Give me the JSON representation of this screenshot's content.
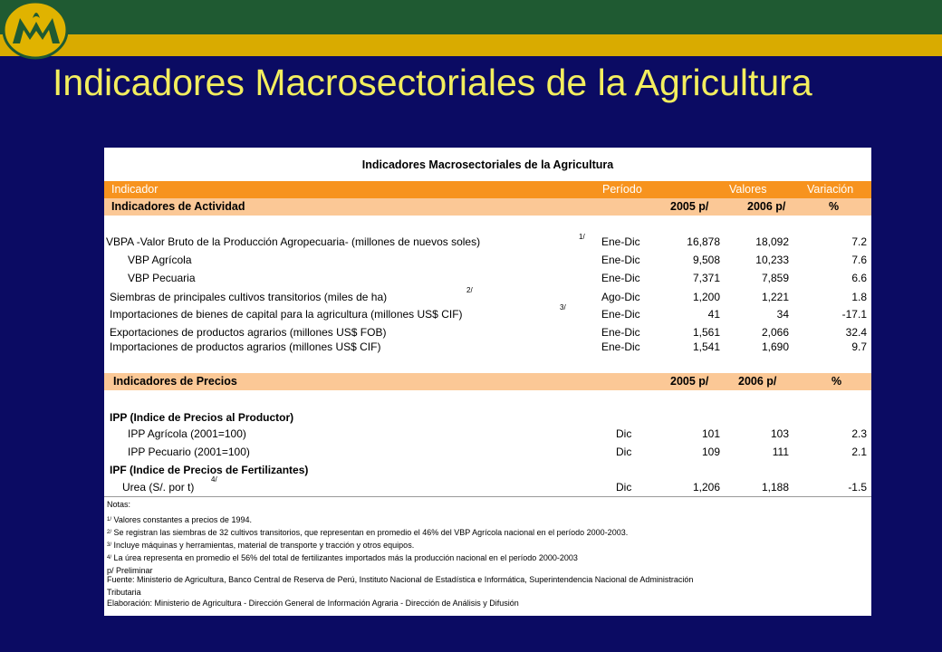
{
  "header": {
    "title": "Indicadores Macrosectoriales de la Agricultura"
  },
  "colors": {
    "background": "#0b0b63",
    "green_bar": "#1f5a32",
    "gold_bar": "#d9ab00",
    "title": "#f3ee5e",
    "table_header": "#f7931e",
    "section_row": "#fbc896"
  },
  "logo": {
    "icon": "ministry-logo-icon"
  },
  "table": {
    "title": "Indicadores Macrosectoriales de la Agricultura",
    "columns": {
      "indicator": "Indicador",
      "period": "Período",
      "values": "Valores",
      "variation": "Variación"
    },
    "activity": {
      "label": "Indicadores de Actividad",
      "y1": "2005 p/",
      "y2": "2006 p/",
      "pct": "%",
      "rows": [
        {
          "name": "VBPA -Valor Bruto de la Producción Agropecuaria- (millones de nuevos soles)",
          "sup": "1/",
          "period": "Ene-Dic",
          "v1": "16,878",
          "v2": "18,092",
          "var": "7.2"
        },
        {
          "name": "VBP Agrícola",
          "sup": "",
          "period": "Ene-Dic",
          "v1": "9,508",
          "v2": "10,233",
          "var": "7.6"
        },
        {
          "name": "VBP Pecuaria",
          "sup": "",
          "period": "Ene-Dic",
          "v1": "7,371",
          "v2": "7,859",
          "var": "6.6"
        },
        {
          "name": "Siembras de principales cultivos transitorios (miles de ha)",
          "sup": "2/",
          "period": "Ago-Dic",
          "v1": "1,200",
          "v2": "1,221",
          "var": "1.8"
        },
        {
          "name": "Importaciones de bienes de capital para la agricultura (millones US$ CIF)",
          "sup": "3/",
          "period": "Ene-Dic",
          "v1": "41",
          "v2": "34",
          "var": "-17.1"
        },
        {
          "name": "Exportaciones de productos agrarios (millones US$ FOB)",
          "sup": "",
          "period": "Ene-Dic",
          "v1": "1,561",
          "v2": "2,066",
          "var": "32.4"
        },
        {
          "name": "Importaciones de productos agrarios (millones US$ CIF)",
          "sup": "",
          "period": "Ene-Dic",
          "v1": "1,541",
          "v2": "1,690",
          "var": "9.7"
        }
      ]
    },
    "prices": {
      "label": "Indicadores de Precios",
      "y1": "2005 p/",
      "y2": "2006 p/",
      "pct": "%",
      "ipp_heading": "IPP (Indice de Precios al Productor)",
      "ipp_rows": [
        {
          "name": "IPP Agrícola (2001=100)",
          "period": "Dic",
          "v1": "101",
          "v2": "103",
          "var": "2.3"
        },
        {
          "name": "IPP Pecuario (2001=100)",
          "period": "Dic",
          "v1": "109",
          "v2": "111",
          "var": "2.1"
        }
      ],
      "ipf_heading": "IPF (Indice de Precios de Fertilizantes)",
      "ipf_rows": [
        {
          "name": "Urea  (S/. por t)",
          "sup": "4/",
          "period": "Dic",
          "v1": "1,206",
          "v2": "1,188",
          "var": "-1.5"
        }
      ]
    },
    "notes": {
      "heading": "Notas:",
      "items": [
        {
          "mark": "1/",
          "text": "Valores constantes a precios de 1994."
        },
        {
          "mark": "2/",
          "text": "Se registran las siembras de 32 cultivos transitorios, que representan en promedio el 46% del VBP Agrícola nacional en el período 2000-2003."
        },
        {
          "mark": "3/",
          "text": "Incluye máquinas y herramientas, material de transporte y tracción y otros equipos."
        },
        {
          "mark": "4/",
          "text": "La úrea representa en promedio el 56% del total de fertilizantes importados más la producción nacional en el período 2000-2003"
        }
      ],
      "preliminar": "p/ Preliminar",
      "fuente": "Fuente: Ministerio de Agricultura, Banco Central de Reserva de Perú, Instituto Nacional de Estadística e Informática, Superintendencia Nacional de Administración",
      "fuente2": "Tributaria",
      "elaboracion": "Elaboración: Ministerio de Agricultura - Dirección General de Información Agraria - Dirección de Análisis y Difusión"
    }
  }
}
